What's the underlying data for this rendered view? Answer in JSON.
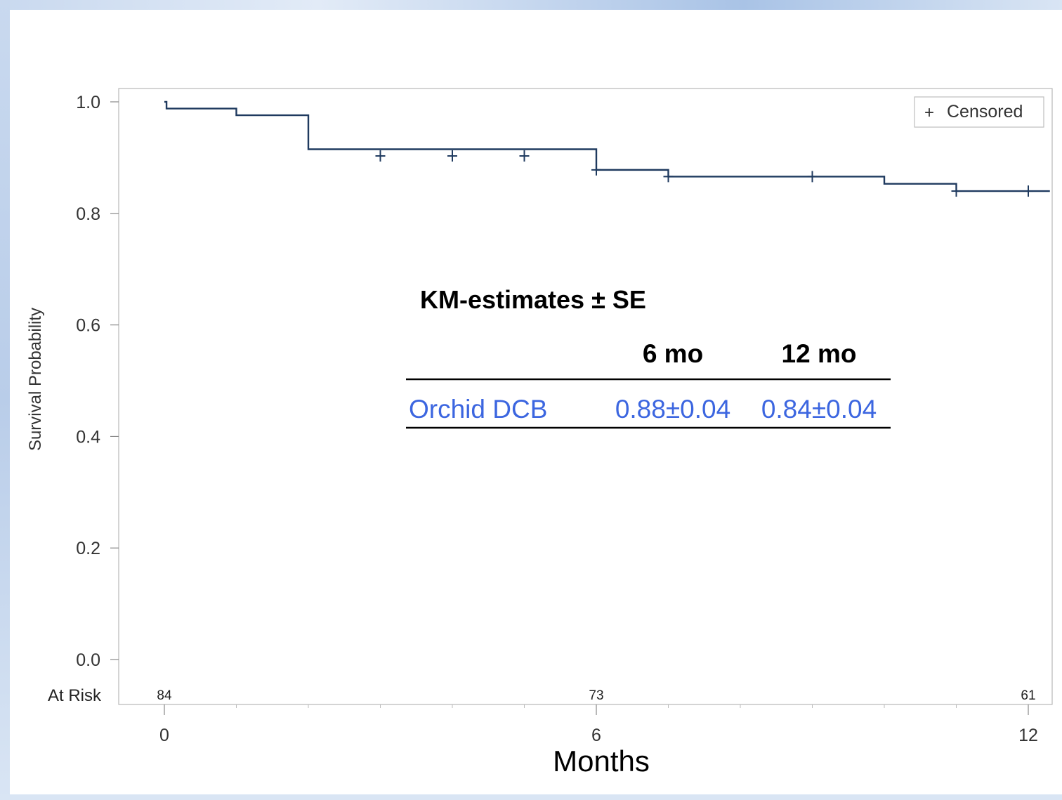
{
  "chart_data": {
    "type": "line",
    "ylabel": "Survival Probability",
    "xlabel": "Months",
    "ylim": [
      0,
      1.0
    ],
    "xlim": [
      0,
      12
    ],
    "y_ticks": [
      "0.0",
      "0.2",
      "0.4",
      "0.6",
      "0.8",
      "1.0"
    ],
    "x_ticks": [
      "0",
      "6",
      "12"
    ],
    "grid": false,
    "legend": {
      "position": "top-right",
      "label": "Censored",
      "symbol": "+"
    },
    "series": [
      {
        "color": "#1f3a5f",
        "steps": [
          {
            "x": 0,
            "y": 1.0
          },
          {
            "x": 0.03,
            "y": 0.988
          },
          {
            "x": 1.0,
            "y": 0.976
          },
          {
            "x": 2.0,
            "y": 0.915
          },
          {
            "x": 6.0,
            "y": 0.878
          },
          {
            "x": 7.0,
            "y": 0.866
          },
          {
            "x": 10.0,
            "y": 0.853
          },
          {
            "x": 11.0,
            "y": 0.84
          },
          {
            "x": 12.3,
            "y": 0.84
          }
        ],
        "censored": [
          {
            "x": 3.0,
            "y": 0.903
          },
          {
            "x": 4.0,
            "y": 0.903
          },
          {
            "x": 5.0,
            "y": 0.903
          },
          {
            "x": 6.0,
            "y": 0.878
          },
          {
            "x": 7.0,
            "y": 0.866
          },
          {
            "x": 9.0,
            "y": 0.866
          },
          {
            "x": 11.0,
            "y": 0.84
          },
          {
            "x": 12.0,
            "y": 0.84
          }
        ]
      }
    ],
    "at_risk": {
      "label": "At Risk",
      "points": [
        {
          "x": 0,
          "value": "84"
        },
        {
          "x": 6,
          "value": "73"
        },
        {
          "x": 12,
          "value": "61"
        }
      ]
    },
    "annotation_table": {
      "title": "KM-estimates ± SE",
      "headers": [
        "6 mo",
        "12 mo"
      ],
      "rows": [
        {
          "label": "Orchid DCB",
          "values": [
            "0.88±0.04",
            "0.84±0.04"
          ],
          "color": "#3c66e0"
        }
      ]
    }
  }
}
